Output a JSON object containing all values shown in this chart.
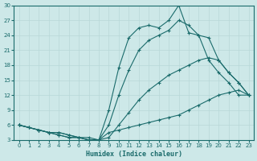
{
  "xlabel": "Humidex (Indice chaleur)",
  "xlim": [
    -0.5,
    23.5
  ],
  "ylim": [
    3,
    30
  ],
  "yticks": [
    3,
    6,
    9,
    12,
    15,
    18,
    21,
    24,
    27,
    30
  ],
  "xticks": [
    0,
    1,
    2,
    3,
    4,
    5,
    6,
    7,
    8,
    9,
    10,
    11,
    12,
    13,
    14,
    15,
    16,
    17,
    18,
    19,
    20,
    21,
    22,
    23
  ],
  "line_color": "#1a6b6b",
  "background_color": "#cde8e8",
  "grid_color": "#b8d8d8",
  "line1_x": [
    0,
    1,
    2,
    3,
    4,
    5,
    6,
    7,
    8,
    9,
    10,
    11,
    12,
    13,
    14,
    15,
    16,
    17,
    18,
    19,
    20,
    21,
    22,
    23
  ],
  "line1_y": [
    6,
    5.5,
    5.0,
    4.5,
    4.5,
    4.0,
    3.5,
    3.0,
    3.0,
    9.0,
    17.5,
    23.5,
    25.5,
    26.0,
    25.5,
    27.0,
    30.0,
    24.5,
    24.0,
    19.0,
    16.5,
    14.5,
    12.0,
    12.0
  ],
  "line2_x": [
    0,
    1,
    2,
    3,
    4,
    5,
    6,
    7,
    8,
    9,
    10,
    11,
    12,
    13,
    14,
    15,
    16,
    17,
    18,
    19,
    20,
    21,
    22,
    23
  ],
  "line2_y": [
    6,
    5.5,
    5.0,
    4.5,
    4.0,
    3.5,
    3.5,
    3.0,
    3.0,
    6.0,
    12.0,
    17.0,
    21.0,
    23.0,
    24.0,
    25.0,
    27.0,
    26.0,
    24.0,
    23.5,
    19.0,
    16.5,
    14.5,
    12.0
  ],
  "line3_x": [
    0,
    2,
    3,
    4,
    5,
    6,
    7,
    8,
    9,
    10,
    11,
    12,
    13,
    14,
    15,
    16,
    17,
    18,
    19,
    20,
    21,
    22,
    23
  ],
  "line3_y": [
    6,
    5.0,
    4.5,
    4.5,
    4.0,
    3.5,
    3.5,
    3.0,
    3.5,
    6.0,
    8.5,
    11.0,
    13.0,
    14.5,
    16.0,
    17.0,
    18.0,
    19.0,
    19.5,
    19.0,
    16.5,
    14.5,
    12.0
  ],
  "line4_x": [
    0,
    1,
    2,
    3,
    4,
    5,
    6,
    7,
    8,
    9,
    10,
    11,
    12,
    13,
    14,
    15,
    16,
    17,
    18,
    19,
    20,
    21,
    22,
    23
  ],
  "line4_y": [
    6,
    5.5,
    5.0,
    4.5,
    4.0,
    3.5,
    3.5,
    3.0,
    3.0,
    4.5,
    5.0,
    5.5,
    6.0,
    6.5,
    7.0,
    7.5,
    8.0,
    9.0,
    10.0,
    11.0,
    12.0,
    12.5,
    13.0,
    12.0
  ]
}
